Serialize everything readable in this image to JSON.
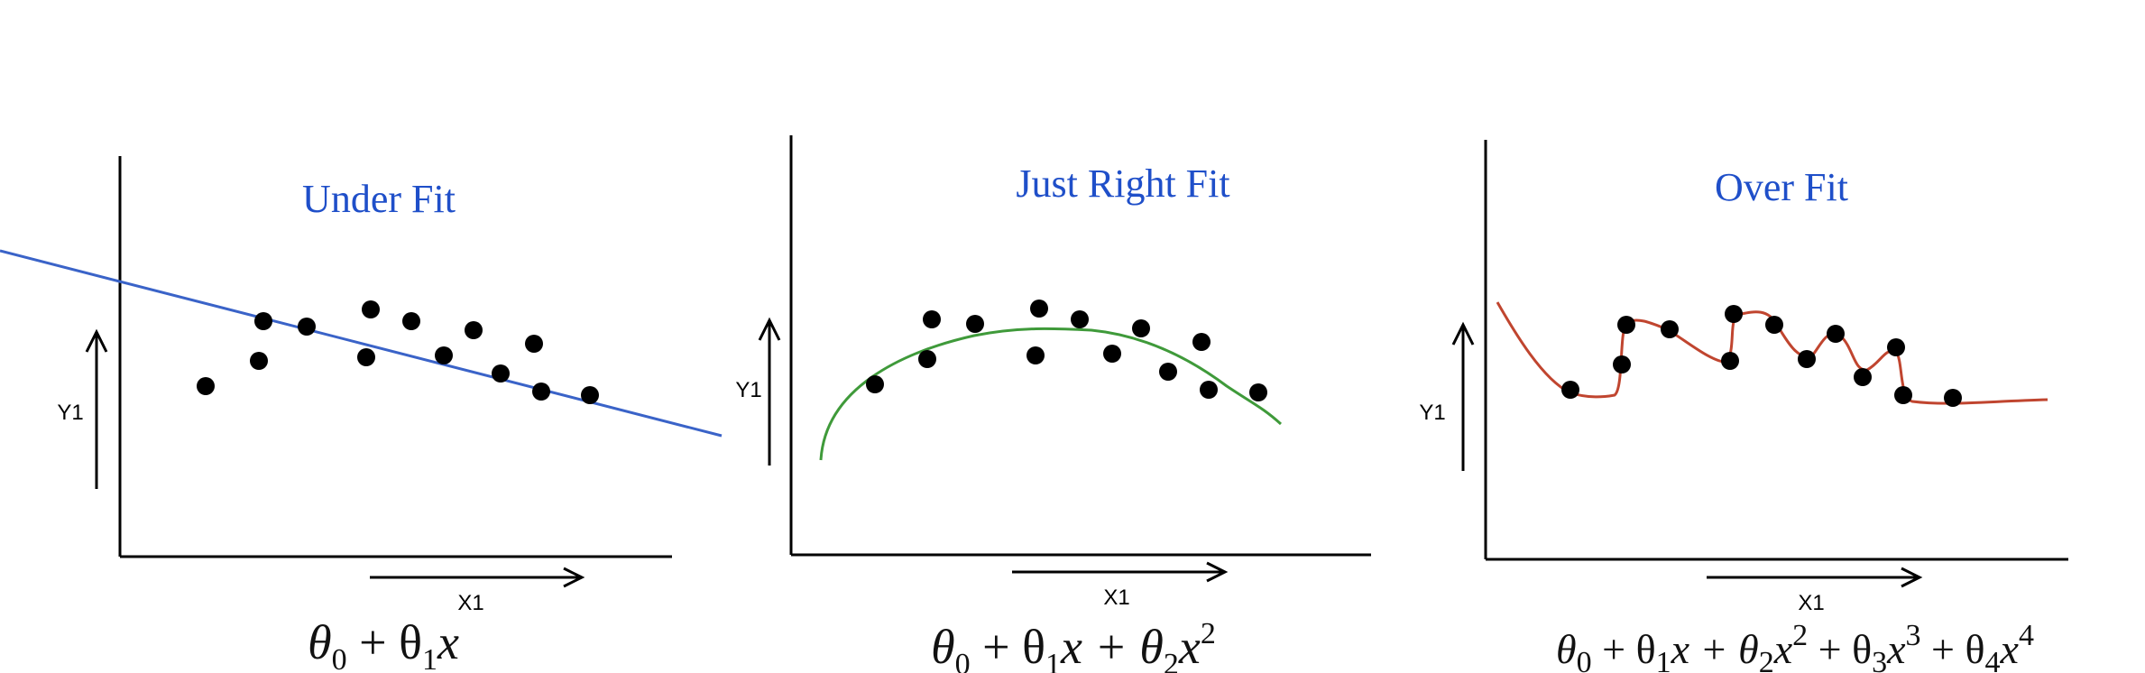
{
  "panels": [
    {
      "title": "Under Fit",
      "y_label": "Y1",
      "x_label": "X1",
      "formula": [
        "θ",
        "0",
        " + θ",
        "1",
        "x"
      ],
      "fit_type": "linear",
      "fit_color": "#3a63c8"
    },
    {
      "title": "Just Right Fit",
      "y_label": "Y1",
      "x_label": "X1",
      "formula": [
        "θ",
        "0",
        " + θ",
        "1",
        "x + θ",
        "2",
        "x",
        "2"
      ],
      "fit_type": "quadratic",
      "fit_color": "#3f9a3a"
    },
    {
      "title": "Over Fit",
      "y_label": "Y1",
      "x_label": "X1",
      "formula": [
        "θ",
        "0",
        " + θ",
        "1",
        "x + θ",
        "2",
        "x",
        "2",
        " + θ",
        "3",
        "x",
        "3",
        " + θ",
        "4",
        "x",
        "4"
      ],
      "fit_type": "wiggly polynomial",
      "fit_color": "#c0452f"
    }
  ],
  "colors": {
    "title": "#1f4fc9",
    "points": "#000000",
    "axes": "#000000"
  }
}
